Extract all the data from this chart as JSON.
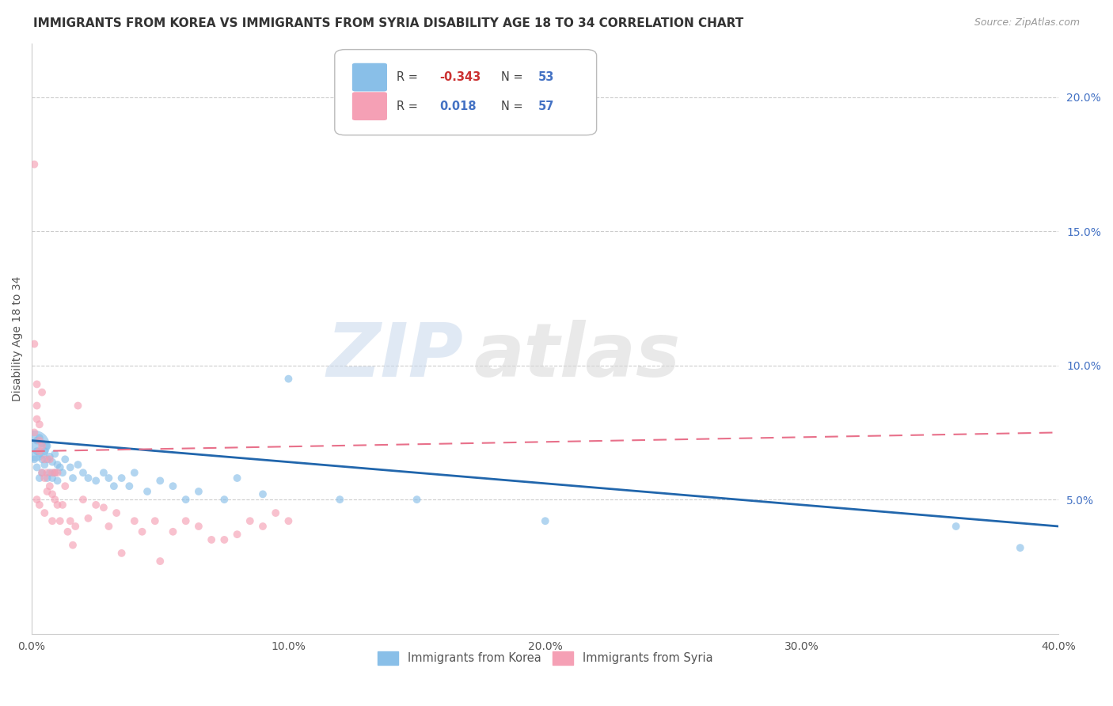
{
  "title": "IMMIGRANTS FROM KOREA VS IMMIGRANTS FROM SYRIA DISABILITY AGE 18 TO 34 CORRELATION CHART",
  "source": "Source: ZipAtlas.com",
  "ylabel": "Disability Age 18 to 34",
  "xlim": [
    0.0,
    0.4
  ],
  "ylim": [
    0.0,
    0.22
  ],
  "xtick_vals": [
    0.0,
    0.1,
    0.2,
    0.3,
    0.4
  ],
  "xtick_labels": [
    "0.0%",
    "10.0%",
    "20.0%",
    "30.0%",
    "40.0%"
  ],
  "ytick_vals": [
    0.05,
    0.1,
    0.15,
    0.2
  ],
  "ytick_labels": [
    "5.0%",
    "10.0%",
    "15.0%",
    "20.0%"
  ],
  "korea_color": "#89bfe8",
  "syria_color": "#f5a0b5",
  "korea_line_color": "#2166ac",
  "syria_line_color": "#e8708a",
  "korea_R": -0.343,
  "korea_N": 53,
  "syria_R": 0.018,
  "syria_N": 57,
  "watermark_zip": "ZIP",
  "watermark_atlas": "atlas",
  "korea_scatter_x": [
    0.001,
    0.001,
    0.002,
    0.002,
    0.002,
    0.003,
    0.003,
    0.003,
    0.004,
    0.004,
    0.004,
    0.005,
    0.005,
    0.006,
    0.006,
    0.006,
    0.007,
    0.007,
    0.008,
    0.008,
    0.009,
    0.009,
    0.01,
    0.01,
    0.011,
    0.012,
    0.013,
    0.015,
    0.016,
    0.018,
    0.02,
    0.022,
    0.025,
    0.028,
    0.03,
    0.032,
    0.035,
    0.038,
    0.04,
    0.045,
    0.05,
    0.055,
    0.06,
    0.065,
    0.075,
    0.08,
    0.09,
    0.1,
    0.12,
    0.15,
    0.2,
    0.36,
    0.385
  ],
  "korea_scatter_y": [
    0.07,
    0.065,
    0.072,
    0.068,
    0.062,
    0.073,
    0.067,
    0.058,
    0.071,
    0.065,
    0.06,
    0.068,
    0.063,
    0.07,
    0.065,
    0.058,
    0.066,
    0.06,
    0.064,
    0.058,
    0.067,
    0.06,
    0.063,
    0.057,
    0.062,
    0.06,
    0.065,
    0.062,
    0.058,
    0.063,
    0.06,
    0.058,
    0.057,
    0.06,
    0.058,
    0.055,
    0.058,
    0.055,
    0.06,
    0.053,
    0.057,
    0.055,
    0.05,
    0.053,
    0.05,
    0.058,
    0.052,
    0.095,
    0.05,
    0.05,
    0.042,
    0.04,
    0.032
  ],
  "korea_scatter_size": [
    800,
    50,
    50,
    50,
    50,
    50,
    50,
    50,
    50,
    50,
    50,
    50,
    50,
    50,
    50,
    50,
    50,
    50,
    50,
    50,
    50,
    50,
    50,
    50,
    50,
    50,
    50,
    50,
    50,
    50,
    50,
    50,
    50,
    50,
    50,
    50,
    50,
    50,
    50,
    50,
    50,
    50,
    50,
    50,
    50,
    50,
    50,
    50,
    50,
    50,
    50,
    50,
    50
  ],
  "syria_scatter_x": [
    0.001,
    0.001,
    0.001,
    0.002,
    0.002,
    0.002,
    0.002,
    0.003,
    0.003,
    0.003,
    0.003,
    0.004,
    0.004,
    0.004,
    0.005,
    0.005,
    0.005,
    0.006,
    0.006,
    0.007,
    0.007,
    0.008,
    0.008,
    0.008,
    0.009,
    0.009,
    0.01,
    0.01,
    0.011,
    0.012,
    0.013,
    0.014,
    0.015,
    0.016,
    0.017,
    0.018,
    0.02,
    0.022,
    0.025,
    0.028,
    0.03,
    0.033,
    0.035,
    0.04,
    0.043,
    0.048,
    0.05,
    0.055,
    0.06,
    0.065,
    0.07,
    0.075,
    0.08,
    0.085,
    0.09,
    0.095,
    0.1
  ],
  "syria_scatter_y": [
    0.175,
    0.108,
    0.075,
    0.093,
    0.085,
    0.08,
    0.05,
    0.078,
    0.072,
    0.068,
    0.048,
    0.09,
    0.07,
    0.06,
    0.065,
    0.058,
    0.045,
    0.06,
    0.053,
    0.065,
    0.055,
    0.06,
    0.052,
    0.042,
    0.06,
    0.05,
    0.06,
    0.048,
    0.042,
    0.048,
    0.055,
    0.038,
    0.042,
    0.033,
    0.04,
    0.085,
    0.05,
    0.043,
    0.048,
    0.047,
    0.04,
    0.045,
    0.03,
    0.042,
    0.038,
    0.042,
    0.027,
    0.038,
    0.042,
    0.04,
    0.035,
    0.035,
    0.037,
    0.042,
    0.04,
    0.045,
    0.042
  ],
  "syria_scatter_size": [
    50,
    50,
    50,
    50,
    50,
    50,
    50,
    50,
    50,
    50,
    50,
    50,
    50,
    50,
    50,
    50,
    50,
    50,
    50,
    50,
    50,
    50,
    50,
    50,
    50,
    50,
    50,
    50,
    50,
    50,
    50,
    50,
    50,
    50,
    50,
    50,
    50,
    50,
    50,
    50,
    50,
    50,
    50,
    50,
    50,
    50,
    50,
    50,
    50,
    50,
    50,
    50,
    50,
    50,
    50,
    50,
    50
  ],
  "korea_line_x0": 0.0,
  "korea_line_y0": 0.072,
  "korea_line_x1": 0.4,
  "korea_line_y1": 0.04,
  "syria_line_x0": 0.0,
  "syria_line_y0": 0.068,
  "syria_line_x1": 0.4,
  "syria_line_y1": 0.075
}
